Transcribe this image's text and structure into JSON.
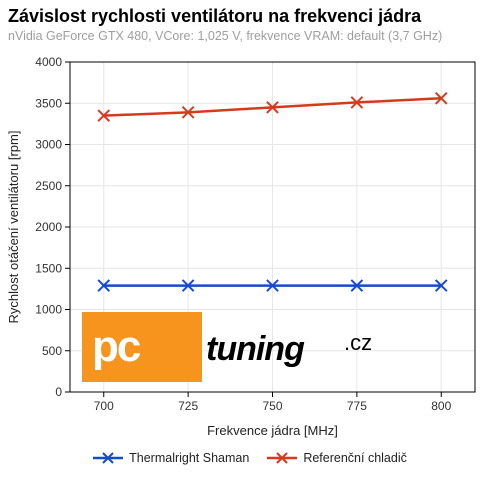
{
  "title": "Závislost rychlosti ventilátoru na frekvenci jádra",
  "subtitle": "nVidia GeForce GTX 480, VCore: 1,025 V, frekvence VRAM: default (3,7 GHz)",
  "chart": {
    "type": "line",
    "background_color": "#ffffff",
    "grid_color": "#e6e6e6",
    "xlabel": "Frekvence jádra [MHz]",
    "ylabel": "Rychlost otáčení ventilátoru [rpm]",
    "xlim": [
      690,
      810
    ],
    "ylim": [
      0,
      4000
    ],
    "xticks": [
      700,
      725,
      750,
      775,
      800
    ],
    "yticks": [
      0,
      500,
      1000,
      1500,
      2000,
      2500,
      3000,
      3500,
      4000
    ],
    "label_fontsize": 13,
    "tick_fontsize": 12,
    "line_width": 2.5,
    "marker_size": 7,
    "series": [
      {
        "name": "Thermalright Shaman",
        "color": "#154bc9",
        "marker": "x",
        "x": [
          700,
          725,
          750,
          775,
          800
        ],
        "y": [
          1290,
          1290,
          1290,
          1290,
          1290
        ]
      },
      {
        "name": "Referenční chladič",
        "color": "#d63a1c",
        "marker": "x",
        "x": [
          700,
          725,
          750,
          775,
          800
        ],
        "y": [
          3350,
          3390,
          3450,
          3510,
          3560
        ]
      }
    ]
  },
  "watermark": {
    "logo_bg_color": "#f7941e",
    "logo_text": "pc",
    "word": "tuning",
    "suffix": ".cz"
  }
}
